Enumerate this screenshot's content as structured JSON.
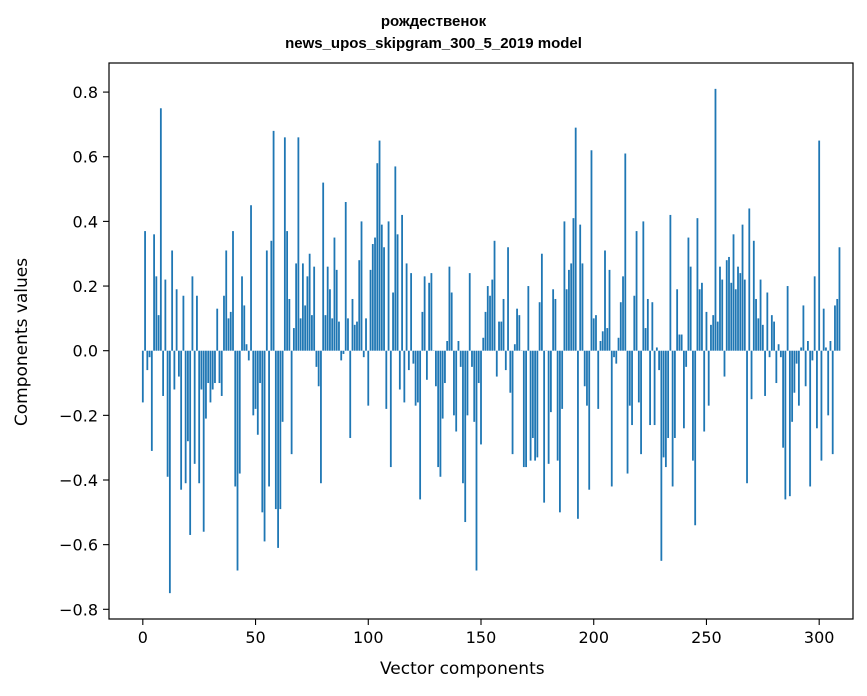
{
  "chart_data": {
    "type": "bar",
    "title_line1": "рождественок",
    "title_line2": "news_upos_skipgram_300_5_2019 model",
    "xlabel": "Vector components",
    "ylabel": "Components values",
    "xlim": [
      -15,
      315
    ],
    "ylim": [
      -0.83,
      0.89
    ],
    "xticks": [
      0,
      50,
      100,
      150,
      200,
      250,
      300
    ],
    "yticks": [
      -0.8,
      -0.6,
      -0.4,
      -0.2,
      0.0,
      0.2,
      0.4,
      0.6,
      0.8
    ],
    "ytick_labels": [
      "−0.8",
      "−0.6",
      "−0.4",
      "−0.2",
      "0.0",
      "0.2",
      "0.4",
      "0.6",
      "0.8"
    ],
    "grid": false,
    "bar_color": "#1f77b4",
    "values": [
      -0.16,
      0.37,
      -0.06,
      -0.02,
      -0.31,
      0.36,
      0.23,
      0.11,
      0.75,
      -0.14,
      0.22,
      -0.39,
      -0.75,
      0.31,
      -0.12,
      0.19,
      -0.08,
      -0.43,
      0.17,
      -0.41,
      -0.28,
      -0.57,
      0.23,
      -0.35,
      0.17,
      -0.41,
      -0.12,
      -0.56,
      -0.21,
      -0.1,
      -0.16,
      -0.12,
      -0.1,
      0.13,
      -0.1,
      -0.14,
      0.17,
      0.31,
      0.1,
      0.12,
      0.37,
      -0.42,
      -0.68,
      -0.38,
      0.23,
      0.14,
      0.02,
      -0.03,
      0.45,
      -0.2,
      -0.18,
      -0.26,
      -0.1,
      -0.5,
      -0.59,
      0.31,
      -0.42,
      0.34,
      0.68,
      -0.49,
      -0.61,
      -0.49,
      -0.22,
      0.66,
      0.37,
      0.16,
      -0.32,
      0.07,
      0.27,
      0.66,
      0.1,
      0.27,
      0.14,
      0.23,
      0.3,
      0.11,
      0.26,
      -0.05,
      -0.11,
      -0.41,
      0.52,
      0.11,
      0.26,
      0.19,
      0.1,
      0.35,
      0.25,
      0.09,
      -0.03,
      -0.01,
      0.46,
      0.1,
      -0.27,
      0.16,
      0.08,
      0.09,
      0.28,
      0.4,
      -0.02,
      0.1,
      -0.17,
      0.25,
      0.33,
      0.35,
      0.58,
      0.65,
      0.39,
      0.32,
      -0.18,
      0.4,
      -0.36,
      0.18,
      0.57,
      0.36,
      -0.12,
      0.42,
      -0.16,
      0.27,
      -0.06,
      0.24,
      -0.04,
      -0.17,
      -0.16,
      -0.46,
      0.12,
      0.23,
      -0.09,
      0.21,
      0.24,
      0.0,
      -0.11,
      -0.36,
      -0.39,
      -0.21,
      -0.1,
      0.03,
      0.26,
      0.18,
      -0.2,
      -0.25,
      0.03,
      -0.05,
      -0.41,
      -0.53,
      -0.2,
      0.24,
      -0.05,
      -0.22,
      -0.68,
      -0.1,
      -0.29,
      0.04,
      0.12,
      0.2,
      0.17,
      0.22,
      0.34,
      -0.08,
      0.09,
      0.09,
      0.16,
      -0.06,
      0.32,
      -0.13,
      -0.32,
      0.02,
      0.13,
      0.11,
      0.0,
      -0.36,
      -0.36,
      0.2,
      -0.34,
      -0.27,
      -0.34,
      -0.33,
      0.15,
      0.3,
      -0.47,
      0.0,
      -0.35,
      -0.19,
      0.19,
      0.16,
      -0.34,
      -0.5,
      -0.18,
      0.4,
      0.19,
      0.25,
      0.27,
      0.41,
      0.69,
      -0.52,
      0.39,
      0.27,
      -0.11,
      -0.17,
      -0.43,
      0.62,
      0.1,
      0.11,
      -0.18,
      0.03,
      0.06,
      0.31,
      0.07,
      0.25,
      -0.42,
      -0.02,
      -0.04,
      0.04,
      0.15,
      0.23,
      0.61,
      -0.38,
      -0.17,
      -0.23,
      0.17,
      0.37,
      -0.16,
      -0.32,
      0.4,
      0.07,
      0.16,
      -0.23,
      0.15,
      -0.23,
      0.01,
      -0.06,
      -0.65,
      -0.33,
      -0.36,
      -0.27,
      0.42,
      -0.42,
      -0.27,
      0.19,
      0.05,
      0.05,
      -0.24,
      -0.05,
      0.35,
      0.26,
      -0.34,
      -0.54,
      0.41,
      0.19,
      0.21,
      -0.25,
      0.12,
      -0.17,
      0.08,
      0.11,
      0.81,
      0.09,
      0.26,
      0.22,
      -0.08,
      0.28,
      0.29,
      0.21,
      0.36,
      0.19,
      0.26,
      0.24,
      0.39,
      0.22,
      -0.41,
      0.44,
      -0.15,
      0.34,
      0.16,
      0.1,
      0.22,
      0.08,
      -0.14,
      0.18,
      -0.02,
      0.11,
      0.09,
      -0.1,
      0.02,
      -0.02,
      -0.3,
      -0.46,
      0.2,
      -0.45,
      -0.22,
      -0.13,
      -0.04,
      -0.17,
      0.01,
      0.14,
      -0.11,
      0.03,
      -0.42,
      -0.03,
      0.23,
      -0.24,
      0.65,
      -0.34,
      0.13,
      0.01,
      -0.2,
      0.03,
      -0.32,
      0.14,
      0.16,
      0.32
    ]
  }
}
